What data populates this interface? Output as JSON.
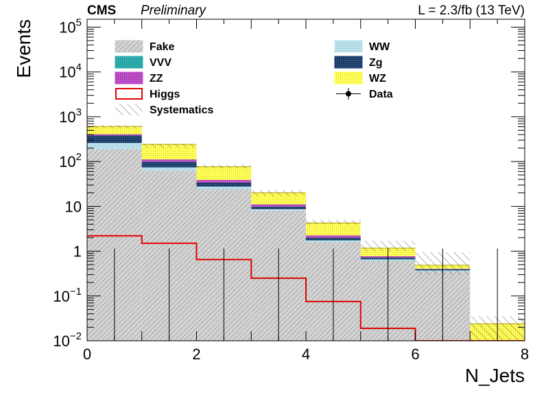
{
  "header": {
    "experiment": "CMS",
    "status": "Preliminary",
    "lumi": "L = 2.3/fb (13 TeV)"
  },
  "chart_data": {
    "type": "bar",
    "stacked": true,
    "log_y": true,
    "xlabel": "N_Jets",
    "ylabel": "Events",
    "xlim": [
      0,
      8
    ],
    "ylim": [
      0.01,
      150000
    ],
    "bin_edges": [
      0,
      1,
      2,
      3,
      4,
      5,
      6,
      7,
      8
    ],
    "x_ticks": [
      {
        "value": 0,
        "label": "0"
      },
      {
        "value": 2,
        "label": "2"
      },
      {
        "value": 4,
        "label": "4"
      },
      {
        "value": 6,
        "label": "6"
      },
      {
        "value": 8,
        "label": "8"
      }
    ],
    "y_ticks": [
      {
        "value": 0.01,
        "base": "10",
        "exp": "−2",
        "plain": ""
      },
      {
        "value": 0.1,
        "base": "10",
        "exp": "−1",
        "plain": ""
      },
      {
        "value": 1,
        "base": "",
        "exp": "",
        "plain": "1"
      },
      {
        "value": 10,
        "base": "",
        "exp": "",
        "plain": "10"
      },
      {
        "value": 100,
        "base": "10",
        "exp": "2",
        "plain": ""
      },
      {
        "value": 1000,
        "base": "10",
        "exp": "3",
        "plain": ""
      },
      {
        "value": 10000,
        "base": "10",
        "exp": "4",
        "plain": ""
      },
      {
        "value": 100000,
        "base": "10",
        "exp": "5",
        "plain": ""
      }
    ],
    "stack": [
      {
        "name": "Fake",
        "color": "#c8c8c8",
        "hatch": true,
        "values": [
          190,
          62,
          24,
          8,
          1.6,
          0.6,
          0.35,
          0.01
        ]
      },
      {
        "name": "WW",
        "color": "#bfe3ee",
        "hatch": false,
        "values": [
          70,
          12,
          3.5,
          0.6,
          0.12,
          0.05,
          0.02,
          0.0
        ]
      },
      {
        "name": "VVV",
        "color": "#30b0b0",
        "hatch": false,
        "values": [
          0.6,
          0.3,
          0.2,
          0.08,
          0.03,
          0.01,
          0.005,
          0.0
        ]
      },
      {
        "name": "Zg",
        "color": "#1a3a66",
        "hatch": false,
        "values": [
          120,
          25,
          6,
          1.2,
          0.25,
          0.06,
          0.02,
          0.0
        ]
      },
      {
        "name": "ZZ",
        "color": "#c050c8",
        "hatch": false,
        "values": [
          25,
          12,
          5,
          1.2,
          0.25,
          0.05,
          0.01,
          0.0
        ]
      },
      {
        "name": "WZ",
        "color": "#ffff50",
        "hatch": false,
        "values": [
          200,
          130,
          38,
          9,
          2.0,
          0.4,
          0.08,
          0.014
        ]
      }
    ],
    "higgs": {
      "name": "Higgs",
      "color": "#e00000",
      "values": [
        2.2,
        1.5,
        0.65,
        0.25,
        0.075,
        0.019,
        0.01,
        0.01
      ]
    },
    "systematics": {
      "name": "Systematics",
      "up": [
        650,
        250,
        85,
        23,
        5.0,
        1.7,
        0.95,
        0.035
      ],
      "down": [
        550,
        200,
        70,
        17,
        3.9,
        1.0,
        0.3,
        0.01
      ]
    },
    "data": {
      "name": "Data",
      "x": [
        0.5,
        1.5,
        2.5,
        3.5,
        4.5,
        5.5,
        6.5,
        7.5
      ],
      "values": [
        0,
        0,
        0,
        0,
        0,
        0,
        0,
        0
      ],
      "err_up": [
        1.15,
        1.15,
        1.15,
        1.15,
        1.15,
        1.15,
        1.15,
        1.15
      ]
    },
    "legend": {
      "placement": "top",
      "entries": [
        {
          "label": "Fake",
          "kind": "fill",
          "color": "#c8c8c8",
          "hatch": true
        },
        {
          "label": "WW",
          "kind": "fill",
          "color": "#bfe3ee",
          "hatch": false
        },
        {
          "label": "VVV",
          "kind": "fill",
          "color": "#30b0b0",
          "hatch": false
        },
        {
          "label": "Zg",
          "kind": "fill",
          "color": "#1a3a66",
          "hatch": false
        },
        {
          "label": "ZZ",
          "kind": "fill",
          "color": "#c050c8",
          "hatch": false
        },
        {
          "label": "WZ",
          "kind": "fill",
          "color": "#ffff50",
          "hatch": false
        },
        {
          "label": "Higgs",
          "kind": "line-box",
          "color": "#e00000",
          "hatch": false
        },
        {
          "label": "Data",
          "kind": "marker",
          "color": "#000000",
          "hatch": false
        },
        {
          "label": "Systematics",
          "kind": "syst",
          "color": "#000000",
          "hatch": true
        }
      ]
    }
  }
}
